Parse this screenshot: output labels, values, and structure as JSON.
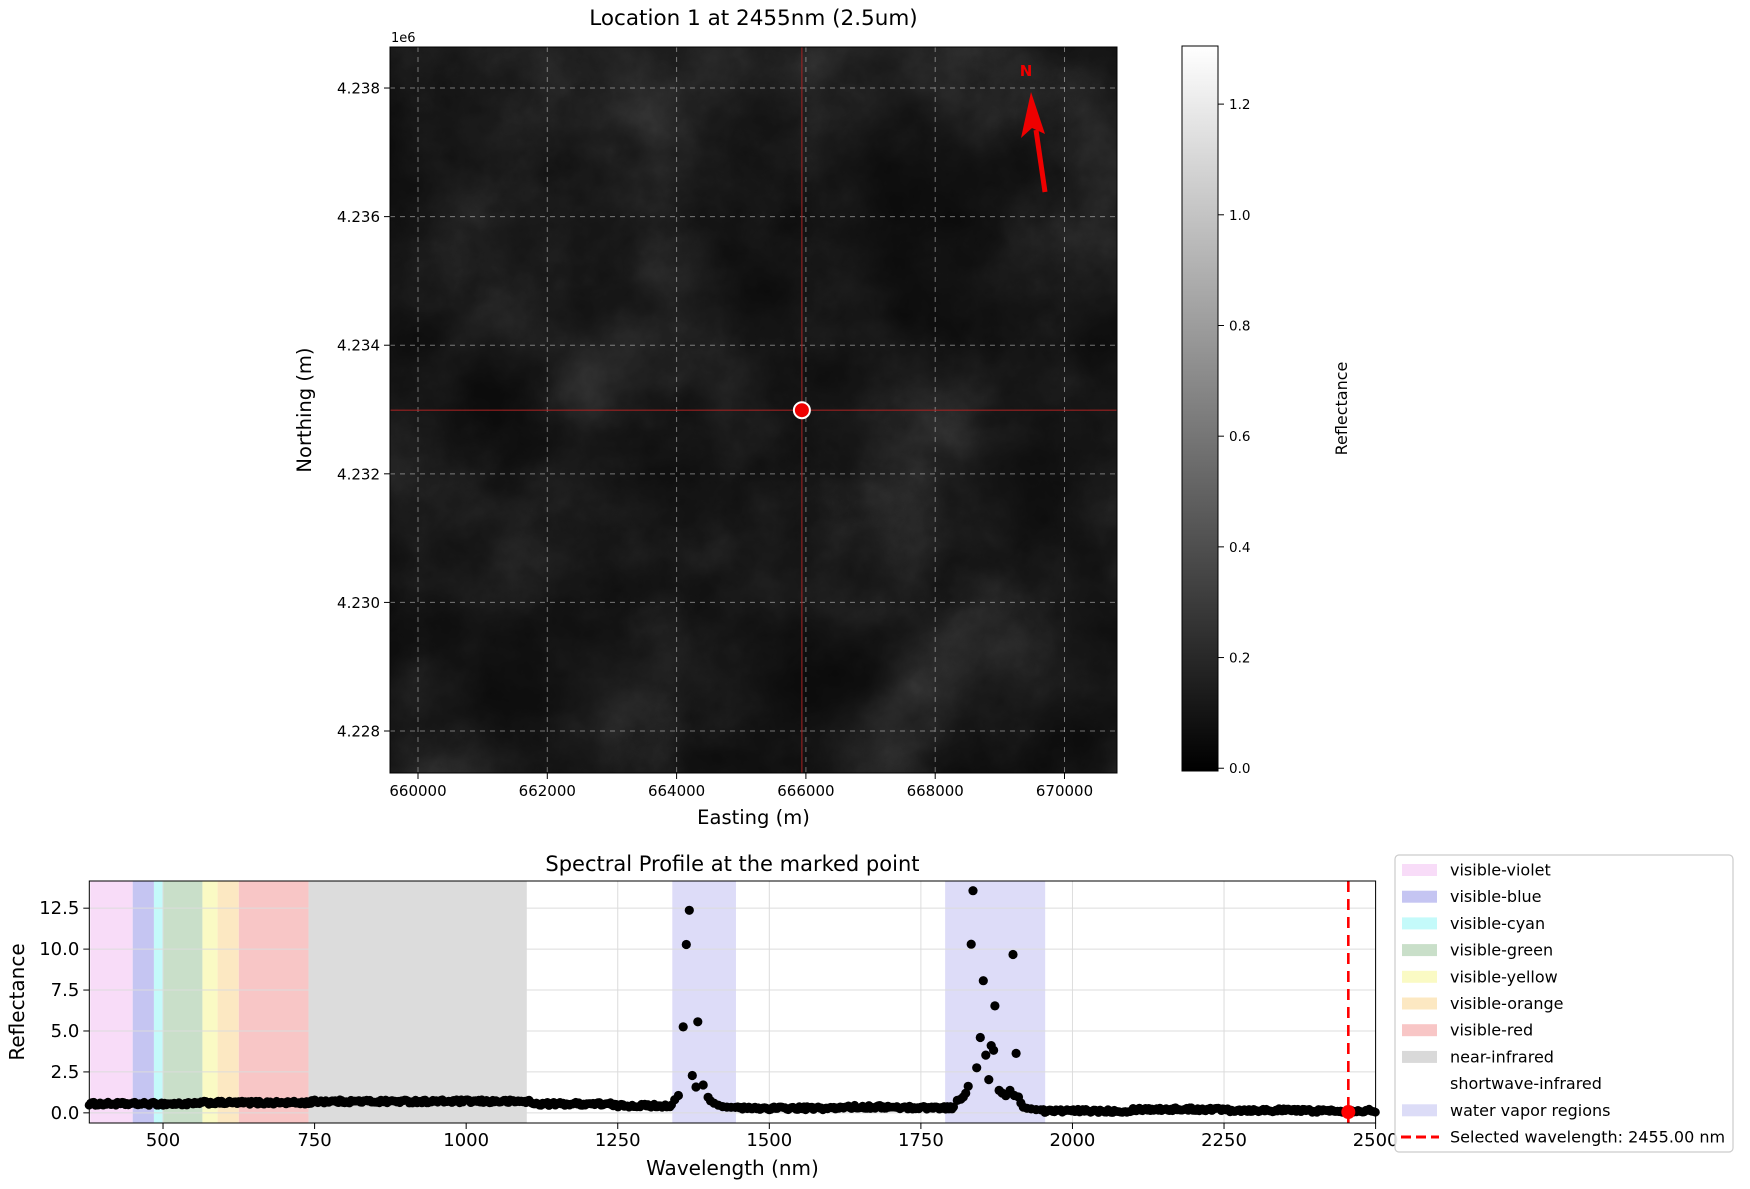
{
  "map": {
    "title": "Location 1 at 2455nm (2.5um)",
    "xlabel": "Easting (m)",
    "ylabel": "Northing (m)",
    "offset_text": "1e6",
    "north_label": "N",
    "x_ticks": [
      660000,
      662000,
      664000,
      666000,
      668000,
      670000
    ],
    "x_tick_labels": [
      "660000",
      "662000",
      "664000",
      "666000",
      "668000",
      "670000"
    ],
    "y_ticks": [
      4238000,
      4236000,
      4234000,
      4232000,
      4230000,
      4228000
    ],
    "y_tick_labels": [
      "4.238",
      "4.236",
      "4.234",
      "4.232",
      "4.230",
      "4.228"
    ],
    "extent": {
      "xmin": 659567,
      "xmax": 670812,
      "ymin": 4227347,
      "ymax": 4238638
    },
    "marker": {
      "easting": 665938,
      "northing": 4232989,
      "color": "#ee0000",
      "edge": "#ffffff"
    },
    "crosshair_color": "#aa2222",
    "grid_color": "rgba(255,255,255,0.42)"
  },
  "colorbar": {
    "label": "Reflectance",
    "ticks": [
      0.0,
      0.2,
      0.4,
      0.6,
      0.8,
      1.0,
      1.2
    ],
    "tick_labels": [
      "0.0",
      "0.2",
      "0.4",
      "0.6",
      "0.8",
      "1.0",
      "1.2"
    ],
    "vmin": -0.005,
    "vmax": 1.305
  },
  "chart_data": {
    "type": "scatter",
    "title": "Spectral Profile at the marked point",
    "xlabel": "Wavelength (nm)",
    "ylabel": "Reflectance",
    "xlim": [
      378.4,
      2500
    ],
    "ylim": [
      -0.62,
      14.16
    ],
    "x_ticks": [
      500,
      750,
      1000,
      1250,
      1500,
      1750,
      2000,
      2250,
      2500
    ],
    "y_ticks": [
      0.0,
      2.5,
      5.0,
      7.5,
      10.0,
      12.5
    ],
    "y_tick_labels": [
      "0.0",
      "2.5",
      "5.0",
      "7.5",
      "10.0",
      "12.5"
    ],
    "point_color": "#000000",
    "bands": [
      {
        "name": "visible-violet",
        "range": [
          380,
          450
        ],
        "color": "#f8dcf8"
      },
      {
        "name": "visible-blue",
        "range": [
          450,
          485
        ],
        "color": "#c5c5f2"
      },
      {
        "name": "visible-cyan",
        "range": [
          485,
          500
        ],
        "color": "#c4fafa"
      },
      {
        "name": "visible-green",
        "range": [
          500,
          565
        ],
        "color": "#c9dfc9"
      },
      {
        "name": "visible-yellow",
        "range": [
          565,
          590
        ],
        "color": "#fafac4"
      },
      {
        "name": "visible-orange",
        "range": [
          590,
          625
        ],
        "color": "#fce8c2"
      },
      {
        "name": "visible-red",
        "range": [
          625,
          740
        ],
        "color": "#f8c6c6"
      },
      {
        "name": "near-infrared",
        "range": [
          740,
          1100
        ],
        "color": "#dcdcdc"
      },
      {
        "name": "shortwave-infrared",
        "range": [
          1100,
          2500
        ],
        "color": "none"
      },
      {
        "name": "water vapor regions",
        "range": [
          1340,
          1445
        ],
        "color": "#dddcf8"
      },
      {
        "name": "water vapor regions",
        "range": [
          1790,
          1955
        ],
        "color": "#dddcf8"
      }
    ],
    "baseline_segments": [
      [
        378,
        560,
        0.55
      ],
      [
        560,
        745,
        0.62
      ],
      [
        745,
        1108,
        0.7
      ],
      [
        1108,
        1240,
        0.55
      ],
      [
        1240,
        1341,
        0.44
      ],
      [
        1448,
        1620,
        0.28
      ],
      [
        1620,
        1700,
        0.36
      ],
      [
        1700,
        1806,
        0.32
      ],
      [
        1952,
        2100,
        0.12
      ],
      [
        2100,
        2260,
        0.22
      ],
      [
        2260,
        2380,
        0.16
      ],
      [
        2380,
        2500,
        0.13
      ]
    ],
    "baseline_jitter": 0.1,
    "spikes": [
      [
        1344,
        0.8
      ],
      [
        1350,
        1.06
      ],
      [
        1358,
        5.25
      ],
      [
        1363,
        10.28
      ],
      [
        1368,
        12.37
      ],
      [
        1373,
        2.28
      ],
      [
        1379,
        1.58
      ],
      [
        1382,
        5.56
      ],
      [
        1391,
        1.7
      ],
      [
        1399,
        0.95
      ],
      [
        1403,
        0.73
      ],
      [
        1409,
        0.59
      ],
      [
        1416,
        0.47
      ],
      [
        1423,
        0.38
      ],
      [
        1430,
        0.35
      ],
      [
        1437,
        0.34
      ],
      [
        1444,
        0.33
      ],
      [
        1810,
        0.76
      ],
      [
        1816,
        0.84
      ],
      [
        1820,
        0.97
      ],
      [
        1824,
        1.2
      ],
      [
        1828,
        1.62
      ],
      [
        1833,
        10.3
      ],
      [
        1836,
        13.57
      ],
      [
        1842,
        2.75
      ],
      [
        1848,
        4.6
      ],
      [
        1853,
        8.07
      ],
      [
        1857,
        3.53
      ],
      [
        1862,
        2.03
      ],
      [
        1866,
        4.11
      ],
      [
        1870,
        3.82
      ],
      [
        1872,
        6.53
      ],
      [
        1879,
        1.37
      ],
      [
        1884,
        1.21
      ],
      [
        1890,
        1.05
      ],
      [
        1897,
        1.37
      ],
      [
        1902,
        9.67
      ],
      [
        1904,
        1.06
      ],
      [
        1907,
        3.63
      ],
      [
        1911,
        0.97
      ],
      [
        1915,
        0.6
      ],
      [
        1919,
        0.35
      ],
      [
        1925,
        0.28
      ],
      [
        1932,
        0.24
      ],
      [
        1940,
        0.2
      ],
      [
        1948,
        0.18
      ]
    ],
    "selected_wavelength": 2455,
    "selected_line_color": "#ff0000",
    "legend": [
      {
        "label": "visible-violet",
        "swatch": "#f8dcf8"
      },
      {
        "label": "visible-blue",
        "swatch": "#c5c5f2"
      },
      {
        "label": "visible-cyan",
        "swatch": "#c4fafa"
      },
      {
        "label": "visible-green",
        "swatch": "#c9dfc9"
      },
      {
        "label": "visible-yellow",
        "swatch": "#fafac4"
      },
      {
        "label": "visible-orange",
        "swatch": "#fce8c2"
      },
      {
        "label": "visible-red",
        "swatch": "#f8c6c6"
      },
      {
        "label": "near-infrared",
        "swatch": "#d9d9d9"
      },
      {
        "label": "shortwave-infrared",
        "swatch": "none"
      },
      {
        "label": "water vapor regions",
        "swatch": "#dcdcf7"
      },
      {
        "label": "Selected wavelength: 2455.00 nm",
        "swatch": "dashed-red-line"
      }
    ]
  }
}
